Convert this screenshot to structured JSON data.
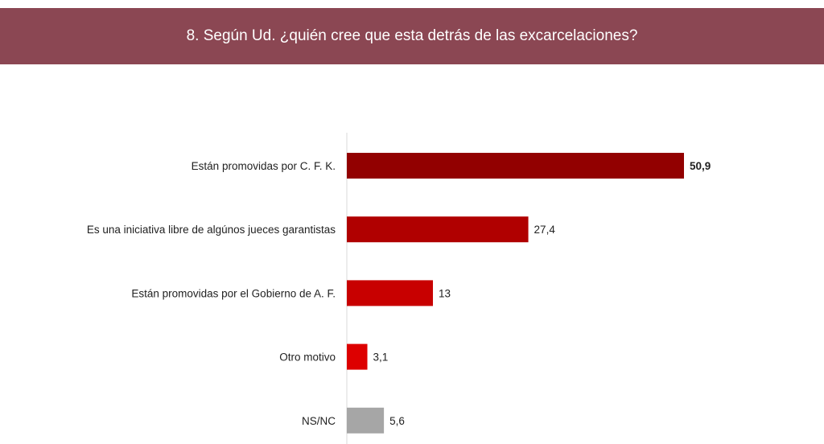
{
  "header": {
    "title": "8. Según Ud. ¿quién cree que esta detrás de las excarcelaciones?"
  },
  "chart_data": {
    "type": "bar",
    "orientation": "horizontal",
    "title": "8. Según Ud. ¿quién cree que esta detrás de las excarcelaciones?",
    "categories": [
      "Están promovidas por C. F. K.",
      "Es una iniciativa libre de algúnos jueces garantistas",
      "Están promovidas por el  Gobierno de A. F.",
      "Otro motivo",
      "NS/NC"
    ],
    "values": [
      50.9,
      27.4,
      13,
      3.1,
      5.6
    ],
    "labels": [
      "50,9",
      "27,4",
      "13",
      "3,1",
      "5,6"
    ],
    "colors": [
      "#920000",
      "#b00000",
      "#c80000",
      "#dd0000",
      "#a6a6a6"
    ],
    "xlabel": "",
    "ylabel": "",
    "xlim": [
      0,
      60
    ],
    "grid": false
  }
}
